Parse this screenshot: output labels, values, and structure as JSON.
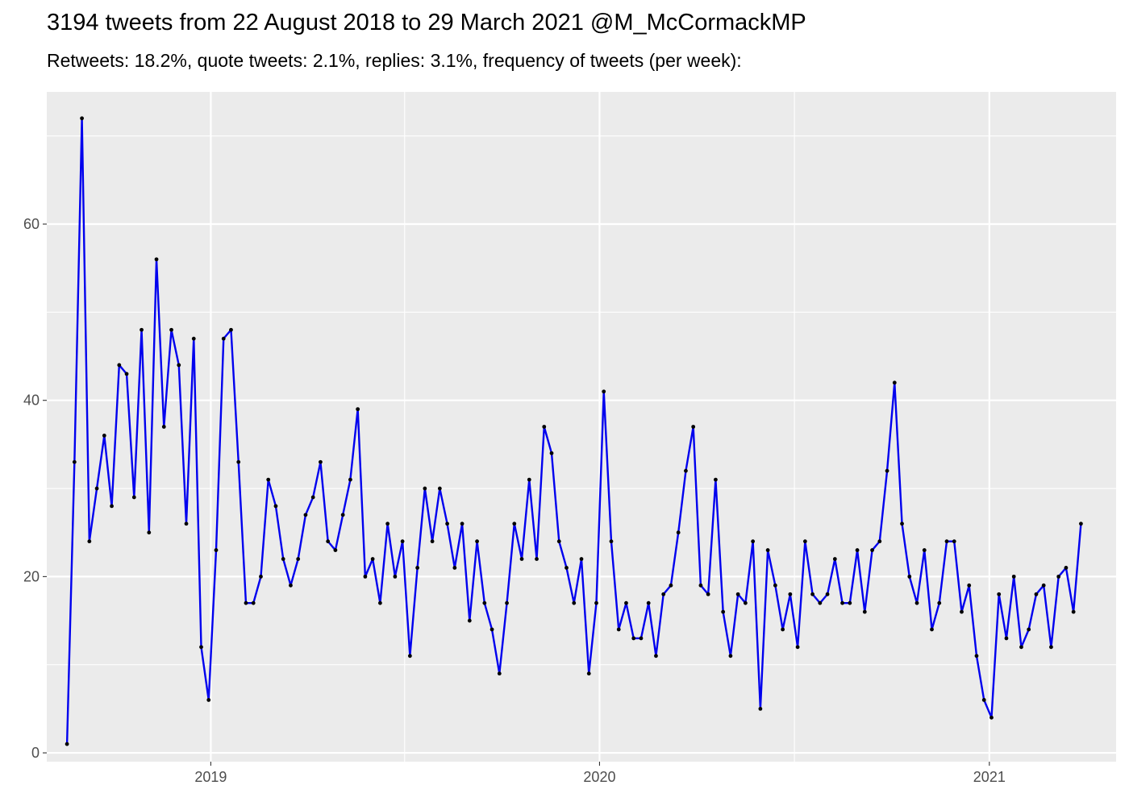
{
  "title": "3194 tweets from 22 August 2018 to 29 March 2021 @M_McCormackMP",
  "subtitle": "Retweets: 18.2%, quote tweets: 2.1%, replies: 3.1%, frequency of tweets (per week):",
  "colors": {
    "panel": "#ebebeb",
    "grid": "#ffffff",
    "line": "#0000ee",
    "point": "#000000"
  },
  "chart_data": {
    "type": "line",
    "title": "3194 tweets from 22 August 2018 to 29 March 2021 @M_McCormackMP",
    "subtitle": "Retweets: 18.2%, quote tweets: 2.1%, replies: 3.1%, frequency of tweets (per week):",
    "xlabel": "",
    "ylabel": "",
    "x_axis": {
      "kind": "date",
      "range": [
        "2018-07-31",
        "2021-04-30"
      ],
      "ticks": [
        "2019-01-01",
        "2020-01-01",
        "2021-01-01"
      ],
      "tick_labels": [
        "2019",
        "2020",
        "2021"
      ]
    },
    "y_axis": {
      "range": [
        -1,
        75
      ],
      "ticks": [
        0,
        20,
        40,
        60
      ],
      "tick_labels": [
        "0",
        "20",
        "40",
        "60"
      ]
    },
    "grid": true,
    "points": true,
    "series": [
      {
        "x": [
          "2018-08-19",
          "2018-08-26",
          "2018-09-02",
          "2018-09-09",
          "2018-09-16",
          "2018-09-23",
          "2018-09-30",
          "2018-10-07",
          "2018-10-14",
          "2018-10-21",
          "2018-10-28",
          "2018-11-04",
          "2018-11-11",
          "2018-11-18",
          "2018-11-25",
          "2018-12-02",
          "2018-12-09",
          "2018-12-16",
          "2018-12-23",
          "2018-12-30",
          "2019-01-06",
          "2019-01-13",
          "2019-01-20",
          "2019-01-27",
          "2019-02-03",
          "2019-02-10",
          "2019-02-17",
          "2019-02-24",
          "2019-03-03",
          "2019-03-10",
          "2019-03-17",
          "2019-03-24",
          "2019-03-31",
          "2019-04-07",
          "2019-04-14",
          "2019-04-21",
          "2019-04-28",
          "2019-05-05",
          "2019-05-12",
          "2019-05-19",
          "2019-05-26",
          "2019-06-02",
          "2019-06-09",
          "2019-06-16",
          "2019-06-23",
          "2019-06-30",
          "2019-07-07",
          "2019-07-14",
          "2019-07-21",
          "2019-07-28",
          "2019-08-04",
          "2019-08-11",
          "2019-08-18",
          "2019-08-25",
          "2019-09-01",
          "2019-09-08",
          "2019-09-15",
          "2019-09-22",
          "2019-09-29",
          "2019-10-06",
          "2019-10-13",
          "2019-10-20",
          "2019-10-27",
          "2019-11-03",
          "2019-11-10",
          "2019-11-17",
          "2019-11-24",
          "2019-12-01",
          "2019-12-08",
          "2019-12-15",
          "2019-12-22",
          "2019-12-29",
          "2020-01-05",
          "2020-01-12",
          "2020-01-19",
          "2020-01-26",
          "2020-02-02",
          "2020-02-09",
          "2020-02-16",
          "2020-02-23",
          "2020-03-01",
          "2020-03-08",
          "2020-03-15",
          "2020-03-22",
          "2020-03-29",
          "2020-04-05",
          "2020-04-12",
          "2020-04-19",
          "2020-04-26",
          "2020-05-03",
          "2020-05-10",
          "2020-05-17",
          "2020-05-24",
          "2020-05-31",
          "2020-06-07",
          "2020-06-14",
          "2020-06-21",
          "2020-06-28",
          "2020-07-05",
          "2020-07-12",
          "2020-07-19",
          "2020-07-26",
          "2020-08-02",
          "2020-08-09",
          "2020-08-16",
          "2020-08-23",
          "2020-08-30",
          "2020-09-06",
          "2020-09-13",
          "2020-09-20",
          "2020-09-27",
          "2020-10-04",
          "2020-10-11",
          "2020-10-18",
          "2020-10-25",
          "2020-11-01",
          "2020-11-08",
          "2020-11-15",
          "2020-11-22",
          "2020-11-29",
          "2020-12-06",
          "2020-12-13",
          "2020-12-20",
          "2020-12-27",
          "2021-01-03",
          "2021-01-10",
          "2021-01-17",
          "2021-01-24",
          "2021-01-31",
          "2021-02-07",
          "2021-02-14",
          "2021-02-21",
          "2021-02-28",
          "2021-03-07",
          "2021-03-14",
          "2021-03-21",
          "2021-03-28"
        ],
        "y": [
          1,
          33,
          72,
          24,
          30,
          36,
          28,
          44,
          43,
          29,
          48,
          25,
          56,
          37,
          48,
          44,
          26,
          47,
          12,
          6,
          23,
          47,
          48,
          33,
          17,
          17,
          20,
          31,
          28,
          22,
          19,
          22,
          27,
          29,
          33,
          24,
          23,
          27,
          31,
          39,
          20,
          22,
          17,
          26,
          20,
          24,
          11,
          21,
          30,
          24,
          30,
          26,
          21,
          26,
          15,
          24,
          17,
          14,
          9,
          17,
          26,
          22,
          31,
          22,
          37,
          34,
          24,
          21,
          17,
          22,
          9,
          17,
          41,
          24,
          14,
          17,
          13,
          13,
          17,
          11,
          18,
          19,
          25,
          32,
          37,
          19,
          18,
          31,
          16,
          11,
          18,
          17,
          24,
          5,
          23,
          19,
          14,
          18,
          12,
          24,
          18,
          17,
          18,
          22,
          17,
          17,
          23,
          16,
          23,
          24,
          32,
          42,
          26,
          20,
          17,
          23,
          14,
          17,
          24,
          24,
          16,
          19,
          11,
          6,
          4,
          18,
          13,
          20,
          12,
          14,
          18,
          19,
          12,
          20,
          21,
          16,
          26
        ]
      }
    ]
  }
}
